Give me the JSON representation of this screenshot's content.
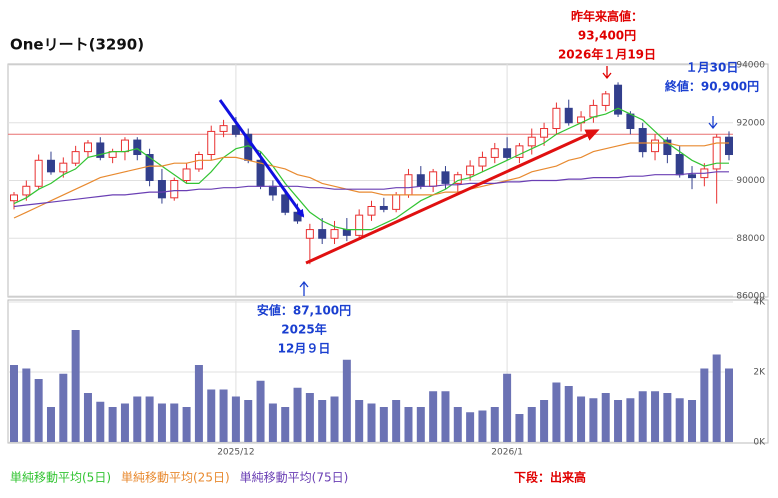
{
  "chart_data": {
    "type": "candlestick",
    "title": "Oneリート(3290)",
    "categories": [
      null,
      null,
      null,
      null,
      null,
      null,
      null,
      null,
      null,
      null,
      null,
      null,
      null,
      null,
      null,
      null,
      null,
      null,
      "2025/12",
      null,
      null,
      null,
      null,
      null,
      null,
      null,
      null,
      null,
      null,
      null,
      null,
      null,
      null,
      null,
      null,
      null,
      null,
      null,
      null,
      null,
      "2026/1",
      null,
      null,
      null,
      null,
      null,
      null,
      null,
      null,
      null,
      null,
      null,
      null,
      null,
      null,
      null,
      null,
      null,
      null
    ],
    "open": [
      89300,
      89500,
      89800,
      90700,
      90300,
      90600,
      91000,
      91300,
      90800,
      91000,
      91400,
      90900,
      90000,
      89400,
      90000,
      90400,
      90900,
      91700,
      91900,
      91600,
      90700,
      89800,
      89500,
      88900,
      88000,
      88300,
      88000,
      88300,
      88100,
      88800,
      89100,
      89000,
      89500,
      90200,
      89800,
      90300,
      89900,
      90200,
      90500,
      90800,
      91100,
      90800,
      91200,
      91500,
      91800,
      92500,
      92000,
      92200,
      92600,
      93300,
      92300,
      91800,
      91000,
      91400,
      90900,
      90200,
      90100,
      90400,
      91500
    ],
    "high": [
      89600,
      90000,
      90900,
      91000,
      90800,
      91200,
      91400,
      91500,
      91100,
      91500,
      91500,
      91100,
      90400,
      90100,
      90600,
      91000,
      91900,
      92100,
      92200,
      91800,
      91000,
      90000,
      89700,
      89200,
      88500,
      88700,
      88600,
      88700,
      89000,
      89300,
      89400,
      89600,
      90400,
      90500,
      90400,
      90500,
      90300,
      90700,
      91000,
      91300,
      91500,
      91300,
      91800,
      92000,
      92700,
      92800,
      92400,
      92800,
      93100,
      93400,
      92400,
      92000,
      91600,
      91500,
      91200,
      90500,
      90600,
      91600,
      91700
    ],
    "low": [
      89000,
      89300,
      89700,
      90200,
      90100,
      90500,
      90800,
      90700,
      90600,
      90700,
      90700,
      89800,
      89200,
      89300,
      89900,
      90300,
      90700,
      91500,
      91500,
      90600,
      89700,
      89300,
      88800,
      88500,
      87100,
      87800,
      87800,
      87900,
      88000,
      88600,
      88900,
      88900,
      89400,
      89700,
      89600,
      89700,
      89600,
      90000,
      90300,
      90600,
      90700,
      90600,
      90900,
      91200,
      91600,
      91900,
      91700,
      92000,
      92400,
      92200,
      91600,
      90800,
      90700,
      90600,
      90100,
      89700,
      89800,
      89200,
      90700
    ],
    "close": [
      89500,
      89800,
      90700,
      90300,
      90600,
      91000,
      91300,
      90800,
      91000,
      91400,
      90900,
      90000,
      89400,
      90000,
      90400,
      90900,
      91700,
      91900,
      91600,
      90700,
      89800,
      89500,
      88900,
      88600,
      88300,
      88000,
      88300,
      88100,
      88800,
      89100,
      89000,
      89500,
      90200,
      89800,
      90300,
      89900,
      90200,
      90500,
      90800,
      91100,
      90800,
      91200,
      91500,
      91800,
      92500,
      92000,
      92200,
      92600,
      93000,
      92300,
      91800,
      91000,
      91400,
      90900,
      90200,
      90100,
      90400,
      91500,
      90900
    ],
    "up_color": "#e83030",
    "down_color": "#323f8c",
    "volume": [
      2200,
      2100,
      1800,
      1000,
      1950,
      3200,
      1400,
      1150,
      1000,
      1100,
      1300,
      1300,
      1100,
      1100,
      1000,
      2200,
      1500,
      1500,
      1300,
      1200,
      1750,
      1100,
      1000,
      1550,
      1400,
      1200,
      1300,
      2350,
      1200,
      1100,
      1000,
      1200,
      1000,
      1000,
      1450,
      1450,
      1000,
      850,
      900,
      1000,
      1950,
      800,
      1000,
      1200,
      1700,
      1600,
      1300,
      1250,
      1400,
      1200,
      1250,
      1450,
      1450,
      1400,
      1250,
      1200,
      2100,
      2500,
      2100
    ],
    "volume_color": "#6b72b4",
    "volume_label": "下段：出来高",
    "series": [
      {
        "name": "単純移動平均(5日)",
        "color": "#33c433",
        "values": [
          89200,
          89400,
          89700,
          89900,
          90200,
          90400,
          90800,
          90900,
          91000,
          91000,
          91100,
          90800,
          90500,
          90200,
          89900,
          89900,
          90300,
          90800,
          91100,
          91200,
          91000,
          90500,
          89900,
          89400,
          88900,
          88600,
          88400,
          88300,
          88300,
          88300,
          88500,
          88700,
          89000,
          89300,
          89500,
          89700,
          90000,
          90100,
          90300,
          90500,
          90700,
          90900,
          91100,
          91300,
          91600,
          91800,
          92000,
          92200,
          92300,
          92500,
          92300,
          92100,
          91700,
          91300,
          91000,
          90700,
          90500,
          90600,
          90600
        ]
      },
      {
        "name": "単純移動平均(25日)",
        "color": "#e88a30",
        "values": [
          88700,
          88900,
          89100,
          89300,
          89500,
          89700,
          89900,
          90100,
          90200,
          90300,
          90400,
          90500,
          90500,
          90600,
          90600,
          90700,
          90700,
          90800,
          90800,
          90700,
          90600,
          90500,
          90400,
          90200,
          90100,
          89900,
          89800,
          89700,
          89600,
          89600,
          89500,
          89500,
          89500,
          89500,
          89500,
          89600,
          89600,
          89700,
          89800,
          89900,
          90000,
          90100,
          90300,
          90400,
          90500,
          90700,
          90800,
          91000,
          91100,
          91200,
          91300,
          91300,
          91300,
          91300,
          91200,
          91200,
          91200,
          91300,
          91300
        ]
      },
      {
        "name": "単純移動平均(75日)",
        "color": "#6a3fb4",
        "values": [
          89100,
          89150,
          89200,
          89250,
          89300,
          89350,
          89400,
          89450,
          89500,
          89500,
          89550,
          89600,
          89600,
          89650,
          89650,
          89700,
          89700,
          89750,
          89750,
          89800,
          89800,
          89800,
          89800,
          89800,
          89750,
          89750,
          89700,
          89700,
          89700,
          89700,
          89700,
          89750,
          89750,
          89800,
          89800,
          89850,
          89850,
          89900,
          89900,
          89900,
          89950,
          89950,
          90000,
          90000,
          90000,
          90050,
          90050,
          90100,
          90100,
          90100,
          90150,
          90150,
          90200,
          90200,
          90200,
          90250,
          90250,
          90300,
          90300
        ]
      }
    ],
    "ref_line": {
      "value": 91600,
      "color": "#e87070"
    },
    "ylim": [
      86000,
      94000
    ],
    "yticks": [
      86000,
      88000,
      90000,
      92000,
      94000
    ],
    "y2lim": [
      0,
      4000
    ],
    "y2ticks": [
      {
        "value": 0,
        "label": "0K"
      },
      {
        "value": 2000,
        "label": "2K"
      },
      {
        "value": 4000,
        "label": "4K"
      }
    ],
    "grid": true,
    "annotations": [
      {
        "lines": [
          "昨年来高値：",
          "93,400円",
          "2026年１月19日"
        ],
        "color": "#e00000"
      },
      {
        "lines": [
          "１月30日",
          "終値：90,900円"
        ],
        "color": "#1a3fd0"
      },
      {
        "lines": [
          "安値：87,100円",
          "2025年",
          "12月９日"
        ],
        "color": "#1a3fd0"
      }
    ]
  }
}
